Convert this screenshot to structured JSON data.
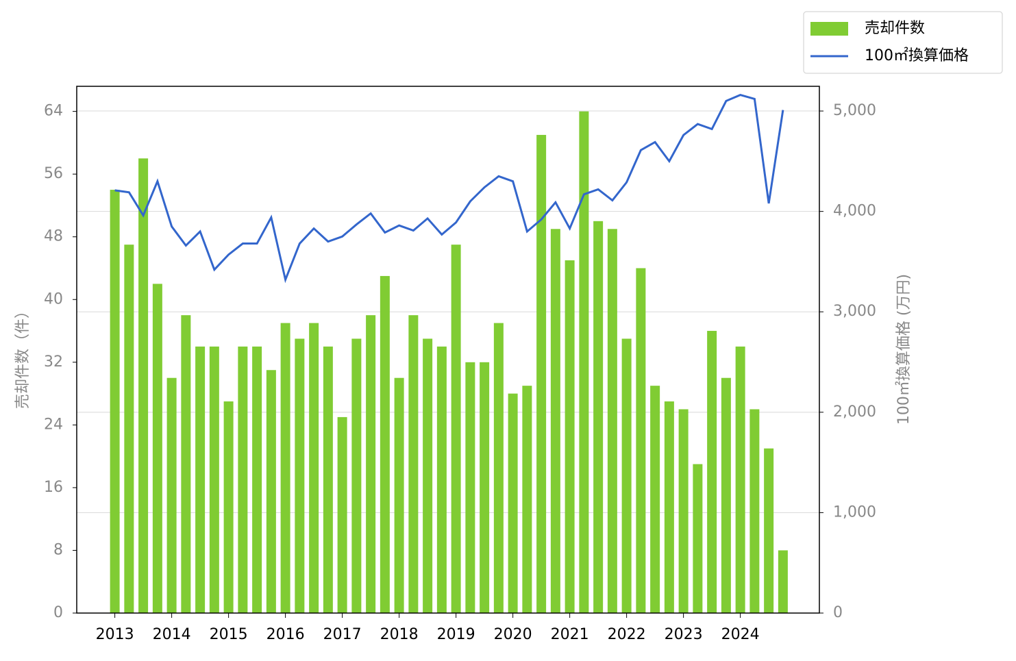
{
  "chart_data": {
    "type": "bar-line",
    "x": [
      2013,
      2013.25,
      2013.5,
      2013.75,
      2014,
      2014.25,
      2014.5,
      2014.75,
      2015,
      2015.25,
      2015.5,
      2015.75,
      2016,
      2016.25,
      2016.5,
      2016.75,
      2017,
      2017.25,
      2017.5,
      2017.75,
      2018,
      2018.25,
      2018.5,
      2018.75,
      2019,
      2019.25,
      2019.5,
      2019.75,
      2020,
      2020.25,
      2020.5,
      2020.75,
      2021,
      2021.25,
      2021.5,
      2021.75,
      2022,
      2022.25,
      2022.5,
      2022.75,
      2023,
      2023.25,
      2023.5,
      2023.75,
      2024,
      2024.25,
      2024.5,
      2024.75
    ],
    "xlim": [
      2012.33,
      2025.39
    ],
    "xticks": [
      2013,
      2014,
      2015,
      2016,
      2017,
      2018,
      2019,
      2020,
      2021,
      2022,
      2023,
      2024
    ],
    "series": [
      {
        "name": "売却件数",
        "color": "#80cc33",
        "kind": "bar",
        "values": [
          54,
          47,
          58,
          42,
          30,
          38,
          34,
          34,
          27,
          34,
          34,
          31,
          37,
          35,
          37,
          34,
          25,
          35,
          38,
          43,
          30,
          38,
          35,
          34,
          47,
          32,
          32,
          37,
          28,
          29,
          61,
          49,
          45,
          64,
          50,
          49,
          35,
          44,
          29,
          27,
          26,
          19,
          36,
          30,
          34,
          26,
          21,
          8
        ]
      },
      {
        "name": "100㎡換算価格",
        "color": "#3366cc",
        "kind": "line",
        "axis": "y2",
        "values": [
          4210,
          4190,
          3960,
          4300,
          3850,
          3660,
          3800,
          3420,
          3570,
          3680,
          3680,
          3940,
          3320,
          3680,
          3830,
          3700,
          3750,
          3870,
          3980,
          3790,
          3860,
          3810,
          3930,
          3770,
          3890,
          4100,
          4240,
          4350,
          4300,
          3800,
          3920,
          4090,
          3830,
          4170,
          4220,
          4110,
          4290,
          4610,
          4690,
          4500,
          4760,
          4870,
          4820,
          5100,
          5160,
          5120,
          4080,
          5010
        ]
      }
    ],
    "ylabel": "売却件数（件）",
    "y2label": "100㎡換算価格 (万円)",
    "ylim": [
      0,
      67.2
    ],
    "yticks": [
      0,
      8,
      16,
      24,
      32,
      40,
      48,
      56,
      64
    ],
    "y2lim": [
      0,
      5246
    ],
    "y2ticks": [
      0,
      {
        "value": 1000,
        "label": "1,000"
      },
      {
        "value": 2000,
        "label": "2,000"
      },
      {
        "value": 3000,
        "label": "3,000"
      },
      {
        "value": 4000,
        "label": "4,000"
      },
      {
        "value": 5000,
        "label": "5,000"
      }
    ],
    "grid": true,
    "legend": "top-right"
  }
}
